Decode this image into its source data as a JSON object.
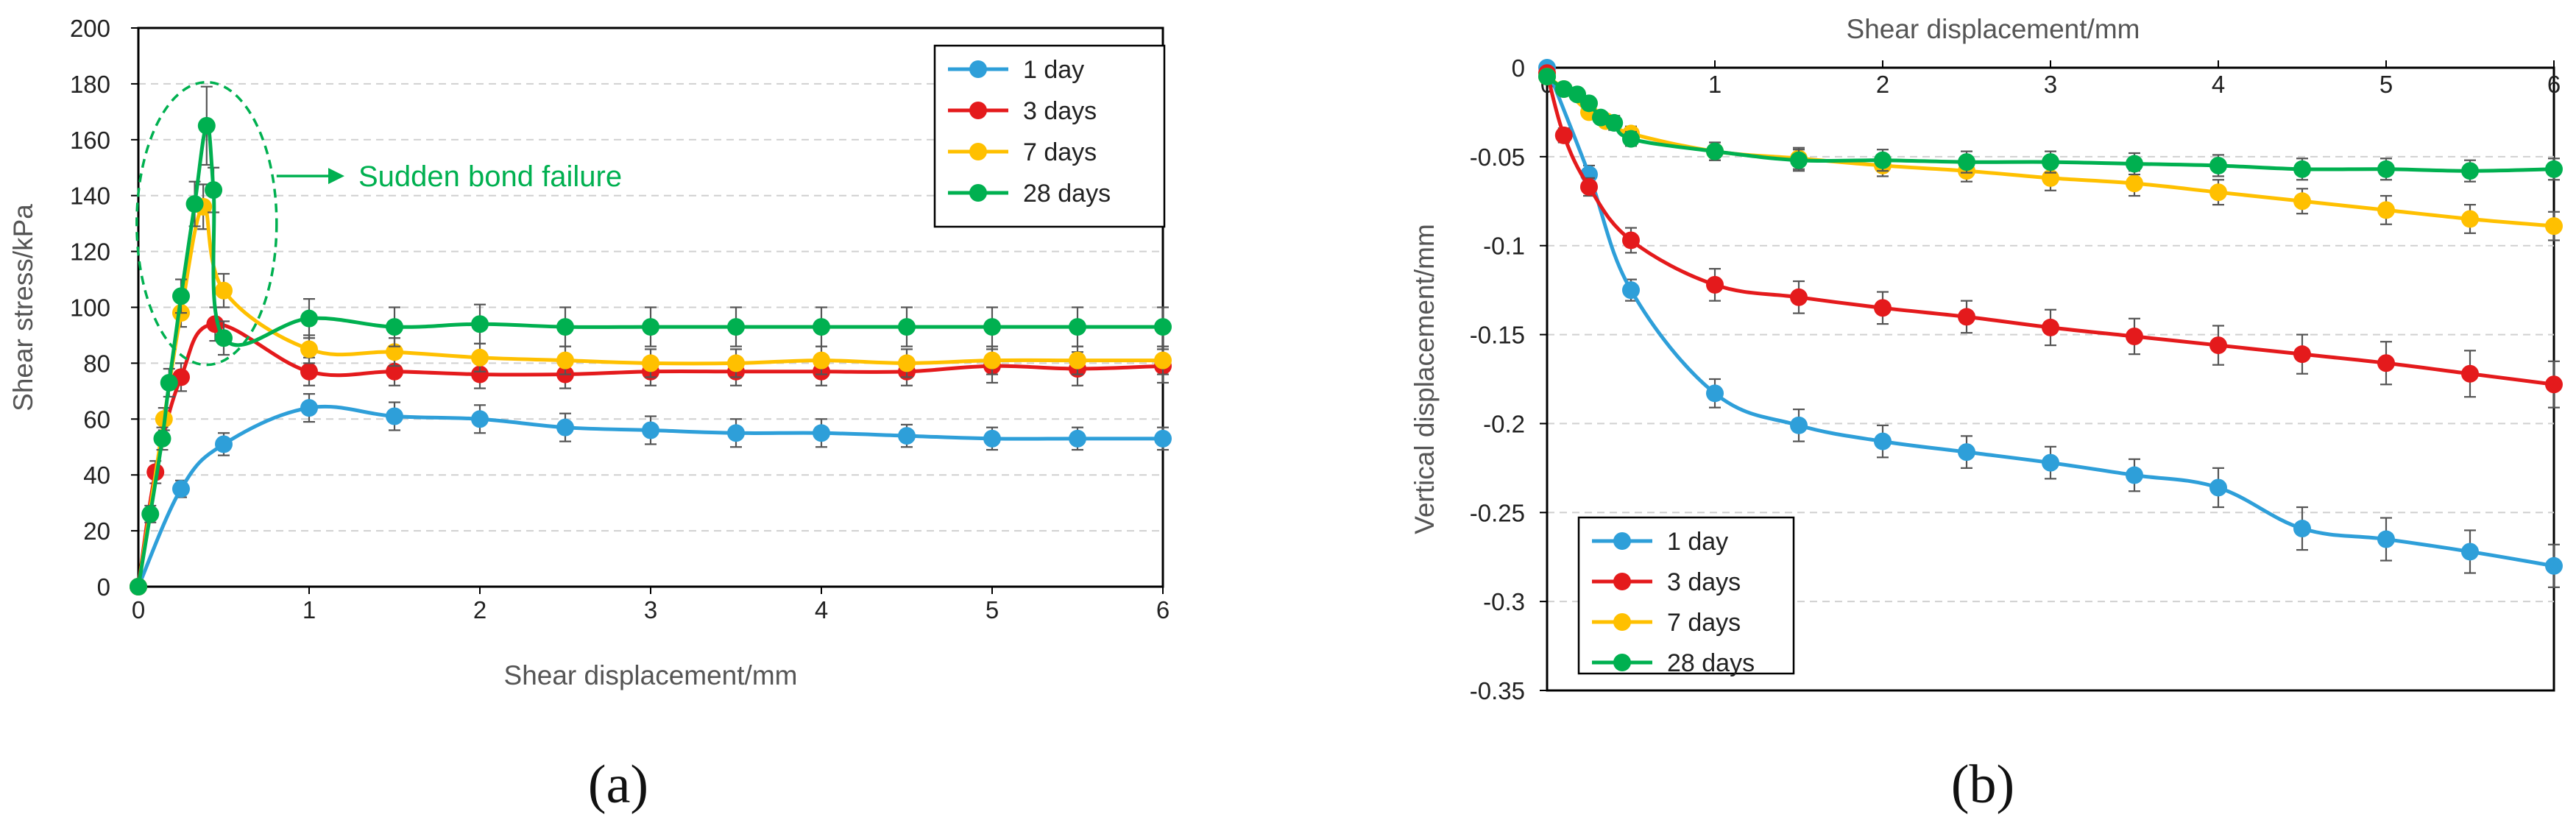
{
  "chart_data": [
    {
      "type": "line",
      "panel_label": "(a)",
      "xlabel": "Shear displacement/mm",
      "ylabel": "Shear stress/kPa",
      "xlim": [
        0,
        6
      ],
      "ylim": [
        0,
        200
      ],
      "xticks": [
        "0",
        "1",
        "2",
        "3",
        "4",
        "5",
        "6"
      ],
      "yticks": [
        "0",
        "20",
        "40",
        "60",
        "80",
        "100",
        "120",
        "140",
        "160",
        "180",
        "200"
      ],
      "grid": "horizontal dashed",
      "legend_position": "top-right",
      "annotation": {
        "text": "Sudden bond failure",
        "color": "#00b050"
      },
      "series": [
        {
          "name": "1 day",
          "color": "#2e9fd9",
          "points": [
            [
              0,
              0
            ],
            [
              0.25,
              35
            ],
            [
              0.5,
              51
            ],
            [
              1,
              64
            ],
            [
              1.5,
              61
            ],
            [
              2,
              60
            ],
            [
              2.5,
              57
            ],
            [
              3,
              56
            ],
            [
              3.5,
              55
            ],
            [
              4,
              55
            ],
            [
              4.5,
              54
            ],
            [
              5,
              53
            ],
            [
              5.5,
              53
            ],
            [
              6,
              53
            ]
          ],
          "err": [
            0,
            3,
            4,
            5,
            5,
            5,
            5,
            5,
            5,
            5,
            4,
            4,
            4,
            4
          ]
        },
        {
          "name": "3 days",
          "color": "#e41a1c",
          "points": [
            [
              0,
              0
            ],
            [
              0.1,
              41
            ],
            [
              0.25,
              75
            ],
            [
              0.45,
              94
            ],
            [
              1,
              77
            ],
            [
              1.5,
              77
            ],
            [
              2,
              76
            ],
            [
              2.5,
              76
            ],
            [
              3,
              77
            ],
            [
              3.5,
              77
            ],
            [
              4,
              77
            ],
            [
              4.5,
              77
            ],
            [
              5,
              79
            ],
            [
              5.5,
              78
            ],
            [
              6,
              79
            ]
          ],
          "err": [
            0,
            4,
            5,
            6,
            5,
            5,
            5,
            5,
            5,
            5,
            5,
            5,
            6,
            6,
            6
          ]
        },
        {
          "name": "7 days",
          "color": "#ffc000",
          "points": [
            [
              0,
              0
            ],
            [
              0.15,
              60
            ],
            [
              0.25,
              98
            ],
            [
              0.38,
              136
            ],
            [
              0.5,
              106
            ],
            [
              1,
              85
            ],
            [
              1.5,
              84
            ],
            [
              2,
              82
            ],
            [
              2.5,
              81
            ],
            [
              3,
              80
            ],
            [
              3.5,
              80
            ],
            [
              4,
              81
            ],
            [
              4.5,
              80
            ],
            [
              5,
              81
            ],
            [
              5.5,
              81
            ],
            [
              6,
              81
            ]
          ],
          "err": [
            0,
            4,
            5,
            8,
            6,
            5,
            5,
            5,
            5,
            5,
            5,
            5,
            5,
            5,
            5,
            5
          ]
        },
        {
          "name": "28 days",
          "color": "#00b050",
          "points": [
            [
              0,
              0
            ],
            [
              0.07,
              26
            ],
            [
              0.14,
              53
            ],
            [
              0.18,
              73
            ],
            [
              0.25,
              104
            ],
            [
              0.33,
              137
            ],
            [
              0.4,
              165
            ],
            [
              0.44,
              142
            ],
            [
              0.5,
              89
            ],
            [
              1,
              96
            ],
            [
              1.5,
              93
            ],
            [
              2,
              94
            ],
            [
              2.5,
              93
            ],
            [
              3,
              93
            ],
            [
              3.5,
              93
            ],
            [
              4,
              93
            ],
            [
              4.5,
              93
            ],
            [
              5,
              93
            ],
            [
              5.5,
              93
            ],
            [
              6,
              93
            ]
          ],
          "err": [
            0,
            3,
            4,
            5,
            6,
            8,
            14,
            8,
            6,
            7,
            7,
            7,
            7,
            7,
            7,
            7,
            7,
            7,
            7,
            7
          ]
        }
      ]
    },
    {
      "type": "line",
      "panel_label": "(b)",
      "xlabel": "Shear displacement/mm",
      "ylabel": "Vertical displacement/mm",
      "xlim": [
        0,
        6
      ],
      "ylim": [
        -0.35,
        0
      ],
      "xticks": [
        "0",
        "1",
        "2",
        "3",
        "4",
        "5",
        "6"
      ],
      "yticks": [
        "0",
        "-0.05",
        "-0.1",
        "-0.15",
        "-0.2",
        "-0.25",
        "-0.3",
        "-0.35"
      ],
      "grid": "horizontal dashed",
      "legend_position": "bottom-left",
      "series": [
        {
          "name": "1 day",
          "color": "#2e9fd9",
          "points": [
            [
              0,
              0
            ],
            [
              0.25,
              -0.06
            ],
            [
              0.5,
              -0.125
            ],
            [
              1,
              -0.183
            ],
            [
              1.5,
              -0.201
            ],
            [
              2,
              -0.21
            ],
            [
              2.5,
              -0.216
            ],
            [
              3,
              -0.222
            ],
            [
              3.5,
              -0.229
            ],
            [
              4,
              -0.236
            ],
            [
              4.5,
              -0.259
            ],
            [
              5,
              -0.265
            ],
            [
              5.5,
              -0.272
            ],
            [
              6,
              -0.28
            ]
          ],
          "err": [
            0,
            0.005,
            0.006,
            0.008,
            0.009,
            0.009,
            0.009,
            0.009,
            0.009,
            0.011,
            0.012,
            0.012,
            0.012,
            0.012
          ]
        },
        {
          "name": "3 days",
          "color": "#e41a1c",
          "points": [
            [
              0,
              -0.003
            ],
            [
              0.1,
              -0.038
            ],
            [
              0.25,
              -0.067
            ],
            [
              0.5,
              -0.097
            ],
            [
              1,
              -0.122
            ],
            [
              1.5,
              -0.129
            ],
            [
              2,
              -0.135
            ],
            [
              2.5,
              -0.14
            ],
            [
              3,
              -0.146
            ],
            [
              3.5,
              -0.151
            ],
            [
              4,
              -0.156
            ],
            [
              4.5,
              -0.161
            ],
            [
              5,
              -0.166
            ],
            [
              5.5,
              -0.172
            ],
            [
              6,
              -0.178
            ]
          ],
          "err": [
            0,
            0.004,
            0.005,
            0.007,
            0.009,
            0.009,
            0.009,
            0.009,
            0.01,
            0.01,
            0.011,
            0.011,
            0.012,
            0.013,
            0.013
          ]
        },
        {
          "name": "7 days",
          "color": "#ffc000",
          "points": [
            [
              0,
              -0.005
            ],
            [
              0.1,
              -0.012
            ],
            [
              0.25,
              -0.025
            ],
            [
              0.35,
              -0.03
            ],
            [
              0.5,
              -0.037
            ],
            [
              1,
              -0.047
            ],
            [
              1.5,
              -0.051
            ],
            [
              2,
              -0.055
            ],
            [
              2.5,
              -0.058
            ],
            [
              3,
              -0.062
            ],
            [
              3.5,
              -0.065
            ],
            [
              4,
              -0.07
            ],
            [
              4.5,
              -0.075
            ],
            [
              5,
              -0.08
            ],
            [
              5.5,
              -0.085
            ],
            [
              6,
              -0.089
            ]
          ],
          "err": [
            0,
            0.003,
            0.003,
            0.003,
            0.004,
            0.005,
            0.006,
            0.006,
            0.006,
            0.007,
            0.007,
            0.007,
            0.007,
            0.008,
            0.008,
            0.008
          ]
        },
        {
          "name": "28 days",
          "color": "#00b050",
          "points": [
            [
              0,
              -0.005
            ],
            [
              0.1,
              -0.012
            ],
            [
              0.18,
              -0.015
            ],
            [
              0.25,
              -0.02
            ],
            [
              0.32,
              -0.028
            ],
            [
              0.4,
              -0.031
            ],
            [
              0.5,
              -0.04
            ],
            [
              1,
              -0.047
            ],
            [
              1.5,
              -0.052
            ],
            [
              2,
              -0.052
            ],
            [
              2.5,
              -0.053
            ],
            [
              3,
              -0.053
            ],
            [
              3.5,
              -0.054
            ],
            [
              4,
              -0.055
            ],
            [
              4.5,
              -0.057
            ],
            [
              5,
              -0.057
            ],
            [
              5.5,
              -0.058
            ],
            [
              6,
              -0.057
            ]
          ],
          "err": [
            0,
            0.003,
            0.003,
            0.003,
            0.003,
            0.004,
            0.004,
            0.005,
            0.006,
            0.006,
            0.006,
            0.006,
            0.006,
            0.006,
            0.006,
            0.006,
            0.006,
            0.006
          ]
        }
      ]
    }
  ]
}
